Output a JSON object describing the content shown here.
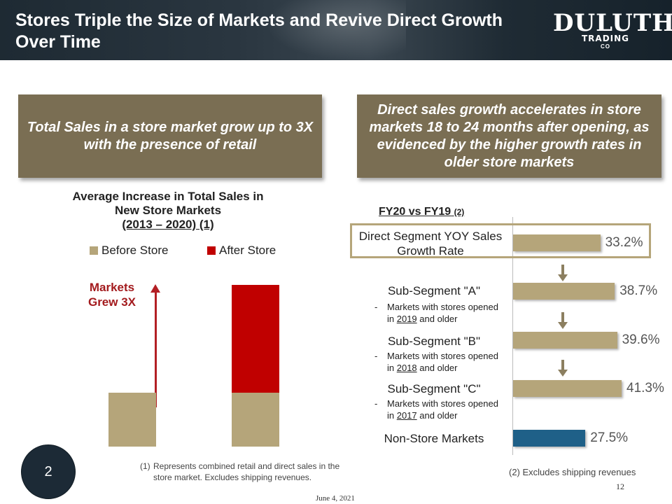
{
  "header": {
    "title": "Stores Triple the Size of Markets and Revive Direct Growth Over Time",
    "logo": {
      "line1": "DULUTH",
      "line2": "TRADING",
      "line3": "CO"
    }
  },
  "left_panel": {
    "callout": "Total Sales in a store market grow up to 3X with the presence of retail",
    "chart_title_line1": "Average Increase in Total Sales in",
    "chart_title_line2": "New Store Markets",
    "chart_title_line3": "(2013 – 2020) (1)",
    "annotation": "Markets Grew 3X",
    "footnote_num": "(1)",
    "footnote_text": "Represents combined retail and direct sales in the store market. Excludes shipping revenues."
  },
  "right_panel": {
    "callout": "Direct sales growth accelerates in store markets 18 to 24 months after opening, as evidenced by the higher growth rates in older store markets",
    "chart_title": "FY20 vs FY19",
    "chart_title_note": "(2)",
    "rows": [
      {
        "label": "Direct Segment YOY Sales Growth Rate",
        "value_label": "33.2%"
      },
      {
        "label": "Sub-Segment \"A\"",
        "note_prefix": "Markets with stores opened",
        "note_pre": "in ",
        "note_year": "2019",
        "note_post": " and older",
        "value_label": "38.7%"
      },
      {
        "label": "Sub-Segment \"B\"",
        "note_prefix": "Markets with stores opened",
        "note_pre": "in ",
        "note_year": "2018",
        "note_post": " and older",
        "value_label": "39.6%"
      },
      {
        "label": "Sub-Segment \"C\"",
        "note_prefix": "Markets with stores opened",
        "note_pre": "in ",
        "note_year": "2017",
        "note_post": " and older",
        "value_label": "41.3%"
      },
      {
        "label": "Non-Store Markets",
        "value_label": "27.5%"
      }
    ],
    "footnote": "(2) Excludes shipping revenues"
  },
  "page_badge": "2",
  "page_number": "12",
  "date": "June 4, 2021",
  "colors": {
    "tan": "#b5a57a",
    "red": "#c00000",
    "blue": "#1f6088",
    "callout_bg": "#7a6e53",
    "header_bg": "#1e2a33"
  },
  "chart_data": [
    {
      "type": "bar",
      "title": "Average Increase in Total Sales in New Store Markets (2013 – 2020) (1)",
      "categories": [
        "",
        ""
      ],
      "series": [
        {
          "name": "Before Store",
          "values": [
            1,
            1
          ]
        },
        {
          "name": "After Store",
          "values": [
            0,
            2
          ]
        }
      ],
      "stacked": true,
      "ylim": [
        0,
        3.2
      ],
      "legend": "top",
      "grid": false
    },
    {
      "type": "bar",
      "orientation": "horizontal",
      "title": "FY20 vs FY19 (2)",
      "categories": [
        "Direct Segment YOY Sales Growth Rate",
        "Sub-Segment \"A\"",
        "Sub-Segment \"B\"",
        "Sub-Segment \"C\"",
        "Non-Store Markets"
      ],
      "values": [
        33.2,
        38.7,
        39.6,
        41.3,
        27.5
      ],
      "xlim": [
        0,
        45
      ],
      "grid": false
    }
  ]
}
